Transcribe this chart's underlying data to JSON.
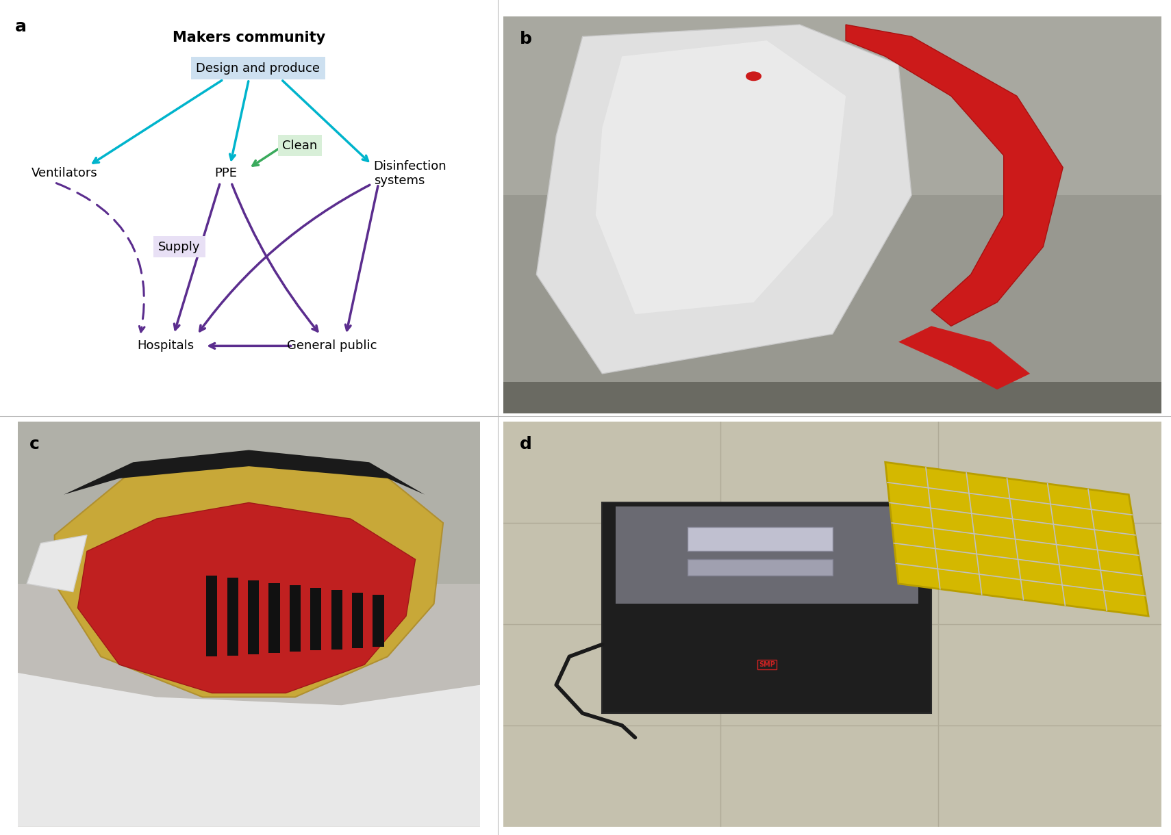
{
  "title": "Makers community",
  "panel_labels": [
    "a",
    "b",
    "c",
    "d"
  ],
  "cyan_color": "#00b4cc",
  "purple_color": "#5b2d8e",
  "green_color": "#3aaa5c",
  "bg_color": "#ffffff",
  "node_design_box": "#cde0f0",
  "node_clean_box": "#d8efd8",
  "node_supply_box": "#e8e0f5",
  "photo_b_bg_top": "#9a9a9a",
  "photo_b_bg_mid": "#d0d0d0",
  "photo_c_bg": "#c8c0b8",
  "photo_d_bg": "#c8c4b0"
}
